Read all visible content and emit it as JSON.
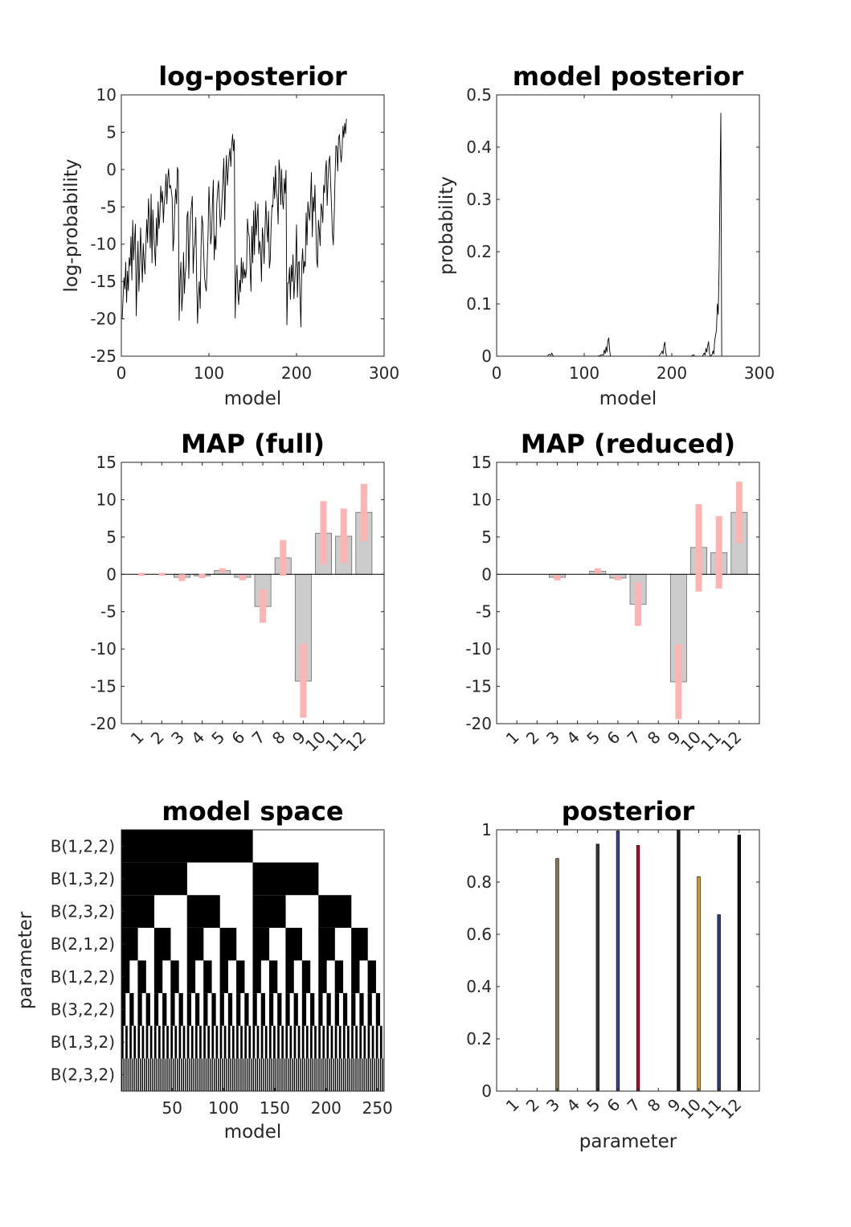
{
  "chart_data": [
    {
      "id": "log-posterior",
      "type": "line",
      "title": "log-posterior",
      "xlabel": "model",
      "ylabel": "log-probability",
      "xlim": [
        0,
        300
      ],
      "ylim": [
        -25,
        10
      ],
      "xticks": [
        0,
        100,
        200,
        300
      ],
      "yticks": [
        -25,
        -20,
        -15,
        -10,
        -5,
        0,
        5,
        10
      ],
      "series": [
        {
          "x_start": 1,
          "x_step": 1,
          "values": [
            -20.0,
            -17.2,
            -14.5,
            -16.0,
            -12.4,
            -17.8,
            -13.6,
            -16.2,
            -11.8,
            -12.9,
            -9.0,
            -14.8,
            -6.8,
            -12.1,
            -9.5,
            -7.3,
            -19.6,
            -14.1,
            -9.6,
            -16.3,
            -13.0,
            -7.8,
            -11.8,
            -15.1,
            -9.9,
            -12.3,
            -14.0,
            -10.2,
            -6.7,
            -9.8,
            -3.9,
            -6.6,
            -10.5,
            -3.3,
            -12.5,
            -5.4,
            -8.6,
            -10.8,
            -12.9,
            -6.5,
            -10.2,
            -4.3,
            -7.9,
            -6.3,
            -2.2,
            -4.4,
            -2.9,
            -7.1,
            -4.4,
            -3.4,
            -0.6,
            -4.6,
            -1.2,
            0.1,
            -2.5,
            -2.1,
            -2.8,
            -3.8,
            -10.9,
            -9.2,
            -5.1,
            -2.6,
            -4.6,
            0.3,
            -0.3,
            -20.2,
            -14.8,
            -12.4,
            -18.9,
            -16.9,
            -11.1,
            -16.6,
            -13.9,
            -12.9,
            -6.3,
            -5.6,
            -14.6,
            -9.4,
            -6.2,
            -4.9,
            -3.6,
            -13.9,
            -10.6,
            -9.9,
            -6.4,
            -14.8,
            -20.6,
            -16.9,
            -15.0,
            -18.6,
            -10.4,
            -6.2,
            -7.3,
            -11.1,
            -14.4,
            -15.6,
            -16.3,
            -12.6,
            -8.8,
            -2.3,
            -5.5,
            -10.0,
            -8.7,
            -4.6,
            -1.4,
            -12.1,
            -8.9,
            -10.7,
            -4.5,
            -2.7,
            -1.5,
            -4.6,
            -7.7,
            -6.2,
            -3.8,
            -1.3,
            1.5,
            -6.7,
            -1.1,
            1.9,
            -2.1,
            -0.2,
            1.8,
            2.8,
            0.4,
            3.2,
            4.7,
            2.5,
            4.0,
            -19.9,
            -14.8,
            -12.8,
            -16.5,
            -18.1,
            -14.8,
            -16.4,
            -11.8,
            -15.2,
            -12.4,
            -14.6,
            -13.4,
            -14.5,
            -13.2,
            -6.6,
            -8.4,
            -9.0,
            -13.1,
            -16.3,
            -7.6,
            -12.5,
            -5.5,
            -11.4,
            -4.3,
            -8.8,
            -6.7,
            -4.6,
            -11.3,
            -9.6,
            -10.6,
            -15.0,
            -7.8,
            -9.3,
            -12.6,
            -8.1,
            -4.2,
            -7.7,
            -9.7,
            -5.6,
            -13.2,
            -12.1,
            -7.6,
            -4.8,
            -5.0,
            -1.0,
            -3.9,
            0.5,
            -3.0,
            -3.8,
            -7.3,
            1.3,
            -0.2,
            -4.7,
            0.0,
            -4.2,
            -5.3,
            -1.2,
            -3.2,
            -0.1,
            -20.8,
            -15.2,
            -15.2,
            -13.1,
            -17.4,
            -12.8,
            -15.0,
            -11.4,
            -17.3,
            -15.0,
            -12.7,
            -7.4,
            -17.1,
            -12.5,
            -12.3,
            -17.1,
            -21.1,
            -12.7,
            -10.6,
            -13.9,
            -12.3,
            -13.0,
            -5.8,
            -10.1,
            -4.3,
            -5.8,
            -6.8,
            -4.0,
            -0.4,
            -9.0,
            -3.7,
            -5.6,
            -2.1,
            -7.1,
            -12.1,
            -13.1,
            -6.8,
            -8.1,
            -10.2,
            -4.6,
            -5.2,
            -7.1,
            -2.1,
            -3.1,
            -0.3,
            1.2,
            -4.8,
            -1.3,
            1.1,
            1.8,
            -2.0,
            -5.0,
            -8.6,
            -10.1,
            -6.3,
            -0.9,
            3.2,
            3.0,
            -0.2,
            4.2,
            4.7,
            2.3,
            1.0,
            2.5,
            5.8,
            4.3,
            6.2,
            4.8,
            6.8
          ]
        }
      ]
    },
    {
      "id": "model-posterior",
      "type": "line",
      "title": "model posterior",
      "xlabel": "model",
      "ylabel": "probability",
      "xlim": [
        0,
        300
      ],
      "ylim": [
        0,
        0.5
      ],
      "xticks": [
        0,
        100,
        200,
        300
      ],
      "yticks": [
        0,
        0.1,
        0.2,
        0.3,
        0.4,
        0.5
      ],
      "series": [
        {
          "points": [
            [
              1,
              0
            ],
            [
              58,
              0
            ],
            [
              60,
              0.004
            ],
            [
              62,
              0.002
            ],
            [
              63,
              0.006
            ],
            [
              64,
              0.002
            ],
            [
              65,
              0
            ],
            [
              115,
              0
            ],
            [
              118,
              0.001
            ],
            [
              120,
              0.003
            ],
            [
              122,
              0.002
            ],
            [
              123,
              0.012
            ],
            [
              124,
              0.005
            ],
            [
              125,
              0.018
            ],
            [
              126,
              0.008
            ],
            [
              127,
              0.03
            ],
            [
              128,
              0.035
            ],
            [
              129,
              0.012
            ],
            [
              130,
              0
            ],
            [
              185,
              0
            ],
            [
              188,
              0.006
            ],
            [
              189,
              0.01
            ],
            [
              190,
              0.004
            ],
            [
              191,
              0.02
            ],
            [
              192,
              0.027
            ],
            [
              193,
              0.008
            ],
            [
              194,
              0
            ],
            [
              222,
              0
            ],
            [
              225,
              0.003
            ],
            [
              226,
              0
            ],
            [
              235,
              0
            ],
            [
              237,
              0.006
            ],
            [
              238,
              0.002
            ],
            [
              239,
              0.015
            ],
            [
              240,
              0.008
            ],
            [
              241,
              0.02
            ],
            [
              242,
              0.028
            ],
            [
              243,
              0.006
            ],
            [
              244,
              0
            ],
            [
              246,
              0.003
            ],
            [
              247,
              0.01
            ],
            [
              248,
              0.004
            ],
            [
              249,
              0.03
            ],
            [
              250,
              0.04
            ],
            [
              251,
              0.05
            ],
            [
              252,
              0.1
            ],
            [
              253,
              0.08
            ],
            [
              254,
              0.17
            ],
            [
              255,
              0.32
            ],
            [
              256,
              0.465
            ],
            [
              257,
              0
            ]
          ]
        }
      ]
    },
    {
      "id": "map-full",
      "type": "bar",
      "title": "MAP (full)",
      "categories": [
        "1",
        "2",
        "3",
        "4",
        "5",
        "6",
        "7",
        "8",
        "9",
        "10",
        "11",
        "12"
      ],
      "ylim": [
        -20,
        15
      ],
      "yticks": [
        -20,
        -15,
        -10,
        -5,
        0,
        5,
        10,
        15
      ],
      "values": [
        0,
        0,
        -0.4,
        -0.2,
        0.5,
        -0.4,
        -4.3,
        2.2,
        -14.3,
        5.5,
        5.1,
        8.3
      ],
      "error_bars": [
        [
          -0.2,
          0.2
        ],
        [
          -0.2,
          0.2
        ],
        [
          -0.9,
          0
        ],
        [
          -0.5,
          0.1
        ],
        [
          0.2,
          0.8
        ],
        [
          -0.8,
          -0.1
        ],
        [
          -6.5,
          -2.0
        ],
        [
          -0.2,
          4.6
        ],
        [
          -19.2,
          -9.3
        ],
        [
          1.3,
          9.8
        ],
        [
          1.5,
          8.8
        ],
        [
          4.4,
          12.1
        ]
      ],
      "bar_color": "#cccccc",
      "error_color": "#ffb3b3"
    },
    {
      "id": "map-reduced",
      "type": "bar",
      "title": "MAP (reduced)",
      "categories": [
        "1",
        "2",
        "3",
        "4",
        "5",
        "6",
        "7",
        "8",
        "9",
        "10",
        "11",
        "12"
      ],
      "ylim": [
        -20,
        15
      ],
      "yticks": [
        -20,
        -15,
        -10,
        -5,
        0,
        5,
        10,
        15
      ],
      "values": [
        0,
        0,
        -0.4,
        0,
        0.4,
        -0.5,
        -4.0,
        0,
        -14.4,
        3.6,
        2.9,
        8.3
      ],
      "error_bars": [
        [
          0,
          0
        ],
        [
          0,
          0
        ],
        [
          -0.8,
          -0.1
        ],
        [
          0,
          0
        ],
        [
          0.1,
          0.8
        ],
        [
          -0.8,
          -0.2
        ],
        [
          -6.9,
          -1.1
        ],
        [
          0,
          0
        ],
        [
          -19.4,
          -9.4
        ],
        [
          -2.3,
          9.4
        ],
        [
          -1.9,
          7.8
        ],
        [
          4.2,
          12.4
        ]
      ],
      "bar_color": "#cccccc",
      "error_color": "#ffb3b3"
    },
    {
      "id": "model-space",
      "type": "heatmap",
      "title": "model space",
      "xlabel": "model",
      "ylabel": "parameter",
      "rows": [
        "B(1,2,2)",
        "B(1,3,2)",
        "B(2,3,2)",
        "B(2,1,2)",
        "B(1,2,2)",
        "B(3,2,2)",
        "B(1,3,2)",
        "B(2,3,2)"
      ],
      "columns": 256,
      "xticks": [
        50,
        100,
        150,
        200,
        250
      ],
      "pattern": "binary enumeration: row k alternates black/white in blocks of 128/2^k models, starting black"
    },
    {
      "id": "posterior",
      "type": "bar",
      "title": "posterior",
      "xlabel": "parameter",
      "categories": [
        "1",
        "2",
        "3",
        "4",
        "5",
        "6",
        "7",
        "8",
        "9",
        "10",
        "11",
        "12"
      ],
      "ylim": [
        0,
        1
      ],
      "yticks": [
        0,
        0.2,
        0.4,
        0.6,
        0.8,
        1
      ],
      "values": [
        0,
        0,
        0.89,
        0,
        0.945,
        0.995,
        0.94,
        0,
        1.0,
        0.82,
        0.675,
        0.98
      ],
      "bar_colors": [
        "#000000",
        "#000000",
        "#8a7a50",
        "#000000",
        "#3a3a3a",
        "#3b4a9a",
        "#b01030",
        "#000000",
        "#1a1a1a",
        "#e0a020",
        "#283a8a",
        "#101010"
      ]
    }
  ]
}
